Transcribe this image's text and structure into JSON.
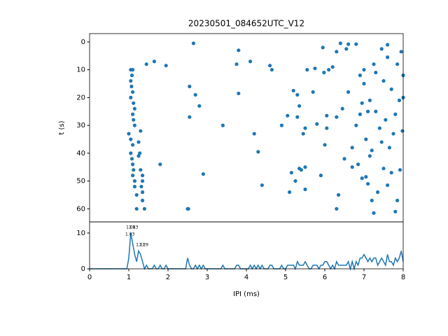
{
  "chart_data": [
    {
      "type": "scatter",
      "title": "20230501_084652UTC_V12",
      "ylabel": "t (s)",
      "color": "#1f77b4",
      "xlim": [
        0,
        8
      ],
      "ylim": [
        64.7,
        -3
      ],
      "yticks": [
        0,
        10,
        20,
        30,
        40,
        50,
        60
      ],
      "x": [
        1.05,
        1.1,
        1.08,
        1.05,
        1.07,
        1.1,
        1.05,
        1.12,
        1.15,
        1.1,
        1.12,
        1.15,
        1.0,
        1.05,
        1.1,
        1.05,
        1.08,
        1.1,
        1.12,
        1.1,
        1.15,
        1.15,
        1.2,
        1.2,
        1.25,
        1.3,
        1.25,
        1.28,
        1.3,
        1.35,
        1.32,
        1.35,
        1.35,
        1.4,
        1.35,
        1.45,
        1.65,
        1.95,
        1.8,
        2.5,
        2.52,
        2.55,
        2.55,
        2.65,
        2.7,
        2.8,
        2.9,
        3.4,
        3.75,
        3.8,
        3.8,
        4.1,
        4.2,
        4.3,
        4.4,
        4.6,
        4.65,
        4.9,
        5.05,
        5.1,
        5.15,
        5.2,
        5.3,
        5.25,
        5.35,
        5.35,
        5.4,
        5.45,
        5.5,
        5.5,
        5.55,
        5.7,
        5.75,
        5.8,
        5.9,
        5.95,
        5.98,
        6.0,
        6.05,
        6.05,
        6.1,
        6.2,
        6.3,
        6.3,
        6.4,
        6.45,
        6.5,
        6.55,
        6.6,
        6.7,
        6.8,
        6.9,
        6.95,
        7.0,
        7.05,
        7.1,
        7.15,
        7.2,
        7.25,
        7.25,
        7.3,
        7.4,
        7.45,
        7.5,
        7.6,
        7.6,
        7.7,
        7.75,
        7.85,
        7.9,
        7.95,
        8.0,
        8.0,
        7.8,
        6.9,
        7.0,
        7.1,
        7.2,
        7.35,
        6.3,
        6.35,
        6.95,
        7.65,
        7.55,
        7.92,
        7.98,
        7.7,
        6.7,
        6.85,
        7.15,
        7.3,
        7.45,
        7.85,
        5.3,
        5.5,
        6.6,
        7.05,
        7.5,
        6.8,
        7.8,
        7.6
      ],
      "y": [
        10,
        10,
        12,
        14,
        16,
        18,
        20,
        22,
        24,
        26,
        28,
        30,
        33,
        35,
        37,
        40,
        42,
        44,
        46,
        48,
        50,
        52,
        55,
        60,
        36,
        32,
        41,
        40,
        46,
        50,
        52,
        54,
        57,
        60,
        48,
        8,
        7,
        8.5,
        44,
        60,
        60,
        27,
        16,
        0.5,
        19,
        23,
        47.5,
        30,
        8,
        3,
        18.5,
        7,
        33,
        39.5,
        51.5,
        8.5,
        10,
        30,
        26.5,
        54,
        47,
        17.5,
        19,
        50,
        23,
        45.5,
        46,
        33,
        45,
        53,
        10,
        18,
        9.5,
        29.5,
        48,
        2,
        11,
        37,
        31,
        26.5,
        10,
        9,
        27,
        60,
        0.5,
        24,
        42,
        2.5,
        18,
        45,
        30,
        26,
        49,
        10,
        35,
        51,
        41,
        57,
        61.5,
        8,
        25,
        31,
        2.5,
        14,
        5.5,
        1,
        47,
        33,
        8,
        21,
        3.5,
        12,
        20,
        61,
        12,
        15,
        25,
        39,
        54,
        3.5,
        55,
        22,
        38,
        28,
        46,
        32,
        17,
        38,
        44,
        21,
        11,
        36,
        57,
        27,
        31,
        0.8,
        48.5,
        45.5,
        0.8,
        26,
        51.5
      ]
    },
    {
      "type": "line",
      "xlabel": "IPI (ms)",
      "color": "#1f77b4",
      "xlim": [
        0,
        8
      ],
      "ylim": [
        0,
        13.1
      ],
      "xticks": [
        0,
        1,
        2,
        3,
        4,
        5,
        6,
        7,
        8
      ],
      "yticks": [
        0,
        10
      ],
      "x": [
        0,
        0.05,
        0.1,
        0.15,
        0.2,
        0.25,
        0.3,
        0.35,
        0.4,
        0.45,
        0.5,
        0.55,
        0.6,
        0.65,
        0.7,
        0.75,
        0.8,
        0.85,
        0.9,
        0.95,
        1.0,
        1.05,
        1.1,
        1.15,
        1.2,
        1.25,
        1.3,
        1.35,
        1.4,
        1.45,
        1.5,
        1.55,
        1.6,
        1.65,
        1.7,
        1.75,
        1.8,
        1.85,
        1.9,
        1.95,
        2.0,
        2.05,
        2.1,
        2.15,
        2.2,
        2.25,
        2.3,
        2.35,
        2.4,
        2.45,
        2.5,
        2.55,
        2.6,
        2.65,
        2.7,
        2.75,
        2.8,
        2.85,
        2.9,
        2.95,
        3.0,
        3.05,
        3.1,
        3.15,
        3.2,
        3.25,
        3.3,
        3.35,
        3.4,
        3.45,
        3.5,
        3.55,
        3.6,
        3.65,
        3.7,
        3.75,
        3.8,
        3.85,
        3.9,
        3.95,
        4.0,
        4.05,
        4.1,
        4.15,
        4.2,
        4.25,
        4.3,
        4.35,
        4.4,
        4.45,
        4.5,
        4.55,
        4.6,
        4.65,
        4.7,
        4.75,
        4.8,
        4.85,
        4.9,
        4.95,
        5.0,
        5.05,
        5.1,
        5.15,
        5.2,
        5.25,
        5.3,
        5.35,
        5.4,
        5.45,
        5.5,
        5.55,
        5.6,
        5.65,
        5.7,
        5.75,
        5.8,
        5.85,
        5.9,
        5.95,
        6.0,
        6.05,
        6.1,
        6.15,
        6.2,
        6.25,
        6.3,
        6.35,
        6.4,
        6.45,
        6.5,
        6.55,
        6.6,
        6.65,
        6.7,
        6.75,
        6.8,
        6.85,
        6.9,
        6.95,
        7.0,
        7.05,
        7.1,
        7.15,
        7.2,
        7.25,
        7.3,
        7.35,
        7.4,
        7.45,
        7.5,
        7.55,
        7.6,
        7.65,
        7.7,
        7.75,
        7.8,
        7.85,
        7.9,
        7.95,
        8.0
      ],
      "values": [
        0,
        0,
        0,
        0,
        0,
        0,
        0,
        0,
        0,
        0,
        0,
        0,
        0,
        0,
        0,
        0,
        0,
        0,
        0,
        0,
        3,
        10,
        7,
        4,
        2,
        5,
        4,
        2,
        0,
        1,
        0,
        0,
        0,
        1,
        0,
        0,
        1,
        0,
        0,
        1,
        0,
        0,
        0,
        0,
        0,
        0,
        0,
        0,
        0,
        0,
        3,
        1,
        0,
        0,
        1,
        0,
        1,
        0,
        1,
        0,
        0,
        0,
        0,
        0,
        0,
        0,
        0,
        0,
        1,
        0,
        0,
        0,
        0,
        0,
        0,
        1,
        1,
        0,
        0,
        0,
        0,
        0,
        1,
        0,
        1,
        0,
        1,
        0,
        1,
        0,
        0,
        0,
        1,
        1,
        0,
        0,
        0,
        0,
        1,
        0,
        0,
        1,
        1,
        1,
        1,
        0,
        2,
        1,
        1,
        1,
        2,
        1,
        0,
        0,
        1,
        1,
        1,
        0,
        1,
        1,
        2,
        2,
        1,
        0,
        1,
        0,
        2,
        1,
        1,
        1,
        1,
        1,
        2,
        0,
        2,
        0,
        2,
        1,
        3,
        3,
        4,
        3,
        2,
        3,
        2,
        3,
        3,
        1,
        2,
        3,
        2,
        1,
        4,
        2,
        2,
        1,
        3,
        2,
        3,
        5,
        2
      ],
      "annotations": [
        {
          "text": "1.08",
          "x": 1.05,
          "y": 11.5
        },
        {
          "text": "1.13",
          "x": 1.12,
          "y": 11.5
        },
        {
          "text": "1.03",
          "x": 1.03,
          "y": 9.6
        },
        {
          "text": "1.21",
          "x": 1.3,
          "y": 6.6
        },
        {
          "text": "1.29",
          "x": 1.38,
          "y": 6.6
        }
      ]
    }
  ]
}
